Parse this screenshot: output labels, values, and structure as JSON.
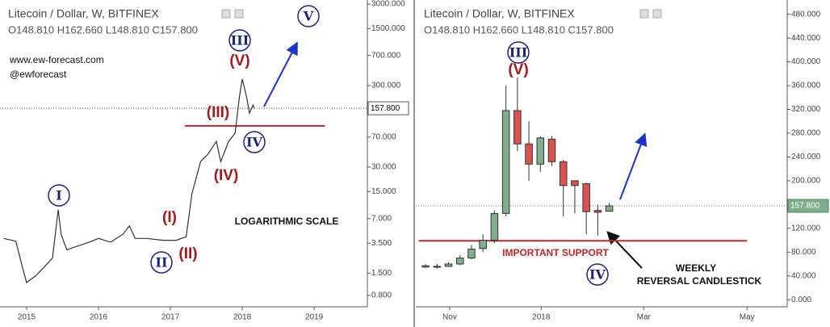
{
  "chart_data": [
    {
      "type": "line",
      "title": "Litecoin / Dollar, W, BITFINEX",
      "ohlc": "O148.810  H162.660  L148.810  C157.800",
      "log_scale": true,
      "color": "#333333",
      "x": [
        2014.68,
        2014.85,
        2014.94,
        2015.0,
        2015.13,
        2015.25,
        2015.36,
        2015.44,
        2015.48,
        2015.56,
        2015.7,
        2015.87,
        2016.0,
        2016.17,
        2016.34,
        2016.43,
        2016.51,
        2016.67,
        2016.9,
        2017.08,
        2017.22,
        2017.3,
        2017.42,
        2017.53,
        2017.64,
        2017.7,
        2017.81,
        2017.9,
        2017.96,
        2018.0,
        2018.06,
        2018.1,
        2018.15,
        2018.17
      ],
      "values": [
        4.0,
        3.7,
        1.8,
        1.15,
        1.4,
        1.8,
        2.3,
        9.0,
        4.5,
        2.9,
        3.2,
        3.6,
        4.0,
        3.6,
        4.5,
        5.7,
        4.0,
        4.0,
        3.8,
        3.8,
        4.2,
        14.1,
        35,
        44,
        62,
        35,
        62,
        78,
        218,
        360,
        218,
        138,
        173,
        158
      ],
      "xlim": [
        2014.63,
        2019.74
      ],
      "xticks": [
        2015,
        2016,
        2017,
        2018,
        2019
      ],
      "ylim": [
        0.58,
        3360
      ],
      "yticks": [
        {
          "value": 0.8,
          "label": "0.800"
        },
        {
          "value": 1.5,
          "label": "1.500"
        },
        {
          "value": 3.5,
          "label": "3.500"
        },
        {
          "value": 7,
          "label": "7.000"
        },
        {
          "value": 15,
          "label": "15.000"
        },
        {
          "value": 30,
          "label": "30.000"
        },
        {
          "value": 70,
          "label": "70.000"
        },
        {
          "value": 300,
          "label": "300.000"
        },
        {
          "value": 700,
          "label": "700.000"
        },
        {
          "value": 1500,
          "label": "1500.000"
        },
        {
          "value": 3000,
          "label": "3000.000"
        }
      ],
      "last_price": {
        "value": 157.8,
        "label": "157.800"
      },
      "support": {
        "value": 96,
        "x": [
          2017.2,
          2019.15
        ],
        "color": "#c0272d"
      },
      "annotations": [
        "www.ew-forecast.com",
        "@ewforecast",
        "LOGARITHMIC SCALE",
        "I",
        "II",
        "(I)",
        "(II)",
        "(III)",
        "(IV)",
        "(V)",
        "III",
        "IV",
        "V"
      ]
    },
    {
      "type": "candlestick",
      "title": "Litecoin / Dollar, W, BITFINEX",
      "ohlc": "O148.810  H162.660  L148.810  C157.800",
      "log_scale": false,
      "up_color": "#7fae8a",
      "down_color": "#d9534f",
      "x": [
        0,
        1,
        2,
        3,
        4,
        5,
        6,
        7,
        8,
        9,
        10,
        11,
        12,
        13,
        14,
        15,
        16
      ],
      "open": [
        55,
        56,
        56,
        60,
        70,
        86,
        100,
        145,
        318,
        262,
        228,
        270,
        232,
        200,
        195,
        150,
        148.81
      ],
      "high": [
        60,
        60,
        63,
        75,
        92,
        110,
        150,
        360,
        374,
        300,
        275,
        275,
        235,
        200,
        197,
        160,
        162.66
      ],
      "low": [
        53,
        52,
        55,
        58,
        68,
        80,
        95,
        140,
        250,
        200,
        215,
        225,
        140,
        145,
        110,
        108,
        148.81
      ],
      "close": [
        57,
        55,
        60,
        70,
        85,
        100,
        145,
        318,
        262,
        228,
        272,
        232,
        192,
        192,
        148,
        147,
        157.8
      ],
      "xlim": [
        -0.85,
        31.5
      ],
      "xticks": [
        {
          "value": 2.1,
          "label": "Nov"
        },
        {
          "value": 10.07,
          "label": "2018"
        },
        {
          "value": 19,
          "label": "Mar"
        },
        {
          "value": 28,
          "label": "May"
        }
      ],
      "ylim": [
        -12,
        504
      ],
      "yticks": [
        {
          "value": 0,
          "label": "0.000"
        },
        {
          "value": 40,
          "label": "40.000"
        },
        {
          "value": 80,
          "label": "80.000"
        },
        {
          "value": 120,
          "label": "120.000"
        },
        {
          "value": 160,
          "label": "160.000"
        },
        {
          "value": 200,
          "label": "200.000"
        },
        {
          "value": 240,
          "label": "240.000"
        },
        {
          "value": 280,
          "label": "280.000"
        },
        {
          "value": 320,
          "label": "320.000"
        },
        {
          "value": 360,
          "label": "360.000"
        },
        {
          "value": 400,
          "label": "400.000"
        },
        {
          "value": 440,
          "label": "440.000"
        },
        {
          "value": 480,
          "label": "480.000"
        }
      ],
      "last_price": {
        "value": 157.8,
        "label": "157.800"
      },
      "support": {
        "value": 99,
        "x": [
          -0.6,
          28
        ],
        "color": "#c0272d"
      },
      "annotations": [
        "III",
        "(V)",
        "IV",
        "IMPORTANT SUPPORT",
        "WEEKLY",
        "REVERSAL CANDLESTICK"
      ]
    }
  ]
}
